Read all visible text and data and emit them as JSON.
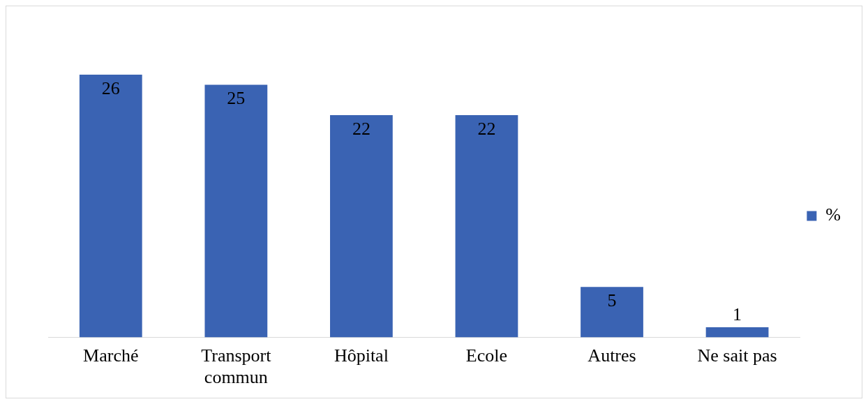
{
  "chart_data": {
    "type": "bar",
    "categories": [
      "Marché",
      "Transport commun",
      "Hôpital",
      "Ecole",
      "Autres",
      "Ne sait pas"
    ],
    "series": [
      {
        "name": "%",
        "color": "#3a63b3",
        "values": [
          26,
          25,
          22,
          22,
          5,
          1
        ]
      }
    ],
    "data_labels": true,
    "legend": "right",
    "grid": false
  }
}
